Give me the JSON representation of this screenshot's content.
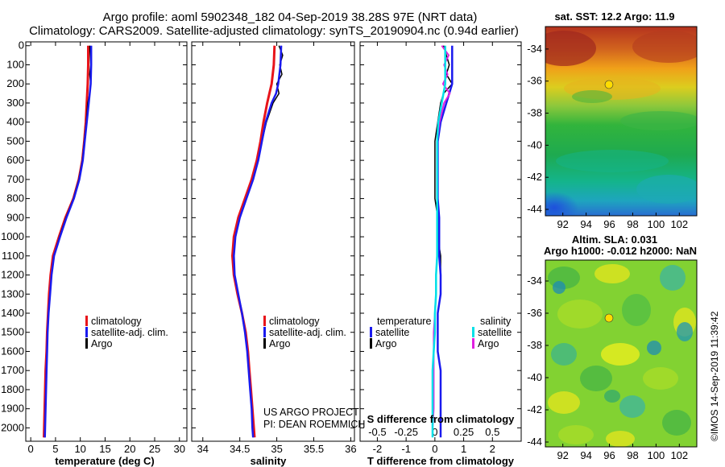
{
  "title_line1": "Argo profile: aoml 5902348_182 04-Sep-2019 38.28S 97E (NRT data)",
  "title_line2": "Climatology: CARS2009. Satellite-adjusted climatology: synTS_20190904.nc (0.94d earlier)",
  "colors": {
    "climatology": "#e8141a",
    "satellite": "#1a1aee",
    "argo": "#000000",
    "sat_salinity": "#00e0e8",
    "argo_salinity": "#e020e0"
  },
  "depth_ticks": [
    "0",
    "100",
    "200",
    "300",
    "400",
    "500",
    "600",
    "700",
    "800",
    "900",
    "1000",
    "1100",
    "1200",
    "1300",
    "1400",
    "1500",
    "1600",
    "1700",
    "1800",
    "1900",
    "2000"
  ],
  "temp_ticks": [
    "0",
    "5",
    "10",
    "15",
    "20",
    "25",
    "30"
  ],
  "sal_ticks": [
    "34",
    "34.5",
    "35",
    "35.5",
    "36"
  ],
  "tdiff_ticks": [
    "-2",
    "-1",
    "0",
    "1",
    "2"
  ],
  "sdiff_ticks": [
    "-0.5",
    "-0.25",
    "0",
    "0.25",
    "0.5"
  ],
  "xlabels": {
    "temp": "temperature (deg C)",
    "sal": "salinity",
    "tdiff": "T difference from climatology",
    "sdiff": "S difference from climatology"
  },
  "legend": {
    "climatology": "climatology",
    "satellite": "satellite-adj. clim.",
    "argo": "Argo"
  },
  "legend3": {
    "temperature": "temperature",
    "salinity": "salinity",
    "satellite": "satellite",
    "argo": "Argo"
  },
  "credit": {
    "line1": "US ARGO PROJECT",
    "line2": "PI: DEAN ROEMMICH"
  },
  "map1": {
    "title": "sat. SST: 12.2 Argo: 11.9"
  },
  "map2": {
    "title1": "Altim. SLA: 0.031",
    "title2": "Argo h1000: -0.012 h2000: NaN"
  },
  "map_lat_ticks": [
    "-34",
    "-36",
    "-38",
    "-40",
    "-42",
    "-44"
  ],
  "map_lon_ticks": [
    "92",
    "94",
    "96",
    "98",
    "100",
    "102"
  ],
  "stamp": "©IMOS 14-Sep-2019 11:39:42",
  "chart_data": [
    {
      "type": "line",
      "title": "temperature",
      "xlabel": "temperature (deg C)",
      "ylabel": "depth",
      "xlim": [
        -1,
        31.5
      ],
      "ylim": [
        2070,
        -20
      ],
      "series": [
        {
          "name": "climatology",
          "depth": [
            0,
            100,
            200,
            300,
            400,
            500,
            600,
            700,
            800,
            900,
            1000,
            1100,
            1200,
            1300,
            1400,
            1500,
            1600,
            1700,
            1800,
            1900,
            2000,
            2050
          ],
          "values": [
            11.6,
            11.6,
            11.5,
            11.3,
            11.1,
            10.8,
            10.4,
            9.7,
            8.6,
            7.0,
            5.7,
            4.5,
            4.0,
            3.7,
            3.5,
            3.3,
            3.2,
            3.0,
            2.9,
            2.8,
            2.7,
            2.65
          ]
        },
        {
          "name": "satellite-adj. clim.",
          "depth": [
            0,
            100,
            200,
            300,
            400,
            500,
            600,
            700,
            800,
            900,
            1000,
            1100,
            1200,
            1300,
            1400,
            1500,
            1600,
            1700,
            1800,
            1900,
            2000,
            2050
          ],
          "values": [
            12.2,
            12.2,
            12.1,
            11.7,
            11.3,
            10.9,
            10.5,
            9.8,
            8.7,
            7.2,
            5.9,
            4.7,
            4.2,
            3.9,
            3.6,
            3.4,
            3.3,
            3.2,
            3.1,
            3.0,
            2.9,
            2.85
          ]
        },
        {
          "name": "Argo",
          "depth": [
            0,
            50,
            100,
            150,
            200,
            250,
            300,
            400,
            500,
            600,
            700,
            800,
            900,
            1000,
            1100,
            1200,
            1300,
            1400,
            1500,
            1600,
            1700,
            1800,
            1900,
            2000
          ],
          "values": [
            11.9,
            12.0,
            12.1,
            11.9,
            12.1,
            11.9,
            11.5,
            11.2,
            10.8,
            10.4,
            9.7,
            8.6,
            7.1,
            5.8,
            4.7,
            4.2,
            3.9,
            3.6,
            3.4,
            3.3,
            3.2,
            3.1,
            3.0,
            2.9
          ]
        }
      ]
    },
    {
      "type": "line",
      "title": "salinity",
      "xlabel": "salinity",
      "ylabel": "depth",
      "xlim": [
        33.85,
        36.05
      ],
      "ylim": [
        2070,
        -20
      ],
      "series": [
        {
          "name": "climatology",
          "depth": [
            0,
            100,
            200,
            250,
            300,
            400,
            500,
            600,
            700,
            800,
            900,
            1000,
            1100,
            1200,
            1300,
            1400,
            1500,
            1600,
            1700,
            1800,
            1900,
            2000,
            2050
          ],
          "values": [
            34.97,
            34.96,
            34.93,
            34.9,
            34.87,
            34.82,
            34.78,
            34.73,
            34.66,
            34.57,
            34.48,
            34.42,
            34.4,
            34.42,
            34.47,
            34.53,
            34.58,
            34.61,
            34.63,
            34.65,
            34.67,
            34.69,
            34.7
          ]
        },
        {
          "name": "satellite-adj. clim.",
          "depth": [
            0,
            100,
            200,
            250,
            300,
            400,
            500,
            600,
            700,
            800,
            900,
            1000,
            1100,
            1200,
            1300,
            1400,
            1500,
            1600,
            1700,
            1800,
            1900,
            2000,
            2050
          ],
          "values": [
            35.06,
            35.05,
            35.02,
            34.99,
            34.93,
            34.85,
            34.8,
            34.75,
            34.68,
            34.59,
            34.5,
            34.44,
            34.42,
            34.43,
            34.48,
            34.53,
            34.57,
            34.6,
            34.62,
            34.64,
            34.66,
            34.67,
            34.68
          ]
        },
        {
          "name": "Argo",
          "depth": [
            0,
            50,
            100,
            150,
            200,
            250,
            300,
            400,
            500,
            600,
            700,
            800,
            900,
            1000,
            1100,
            1200,
            1300,
            1400,
            1500,
            1600,
            1700,
            1800,
            1900,
            2000
          ],
          "values": [
            35.03,
            35.08,
            35.04,
            35.07,
            35.0,
            35.03,
            34.95,
            34.86,
            34.8,
            34.75,
            34.68,
            34.59,
            34.5,
            34.44,
            34.42,
            34.43,
            34.48,
            34.53,
            34.57,
            34.6,
            34.62,
            34.64,
            34.66,
            34.67
          ]
        }
      ]
    },
    {
      "type": "line",
      "title": "T and S difference from climatology",
      "xlabel": "T difference from climatology",
      "x2label": "S difference from climatology",
      "ylabel": "depth",
      "xlim": [
        -2.6,
        3.0
      ],
      "x2lim": [
        -0.65,
        0.75
      ],
      "ylim": [
        2070,
        -20
      ],
      "series": [
        {
          "name": "temperature satellite",
          "axis": "T",
          "depth": [
            0,
            100,
            200,
            300,
            400,
            500,
            600,
            700,
            800,
            900,
            1000,
            1100,
            1200,
            1300,
            1400,
            1500,
            1600,
            1700,
            1800,
            1900,
            2000,
            2050
          ],
          "values": [
            0.6,
            0.6,
            0.6,
            0.4,
            0.2,
            0.1,
            0.1,
            0.1,
            0.1,
            0.15,
            0.15,
            0.15,
            0.2,
            0.2,
            0.1,
            0.1,
            0.1,
            0.2,
            0.2,
            0.2,
            0.2,
            0.2
          ]
        },
        {
          "name": "temperature Argo",
          "axis": "T",
          "depth": [
            0,
            50,
            100,
            150,
            200,
            250,
            300,
            400,
            500,
            600,
            700,
            800,
            900,
            1000,
            1100,
            1200,
            1300,
            1400,
            1500,
            1600,
            1700,
            1800,
            1900,
            2000
          ],
          "values": [
            0.3,
            0.4,
            0.5,
            0.4,
            0.6,
            0.3,
            0.2,
            0.1,
            0.0,
            0.0,
            0.0,
            0.0,
            0.1,
            0.1,
            0.2,
            0.2,
            0.2,
            0.1,
            0.1,
            0.1,
            0.2,
            0.2,
            0.2,
            0.2
          ]
        },
        {
          "name": "salinity satellite",
          "axis": "S",
          "depth": [
            0,
            100,
            200,
            300,
            400,
            500,
            600,
            700,
            800,
            900,
            1000,
            1100,
            1200,
            1300,
            1400,
            1500,
            1600,
            1700,
            1800,
            1900,
            2000,
            2050
          ],
          "values": [
            0.09,
            0.09,
            0.09,
            0.06,
            0.03,
            0.02,
            0.02,
            0.02,
            0.02,
            0.02,
            0.02,
            0.02,
            0.01,
            0.01,
            0.0,
            0.0,
            -0.01,
            -0.02,
            -0.02,
            -0.02,
            -0.02,
            -0.02
          ]
        },
        {
          "name": "salinity Argo",
          "axis": "S",
          "depth": [
            0,
            50,
            100,
            150,
            200,
            250,
            300,
            400,
            500,
            600,
            700,
            800,
            900,
            1000,
            1100,
            1200,
            1300,
            1400,
            1500,
            1600,
            1700,
            1800,
            1900,
            2000
          ],
          "values": [
            0.06,
            0.12,
            0.08,
            0.11,
            0.07,
            0.13,
            0.08,
            0.04,
            0.02,
            0.02,
            0.02,
            0.02,
            0.02,
            0.02,
            0.02,
            0.01,
            0.01,
            0.0,
            -0.01,
            -0.01,
            -0.01,
            -0.01,
            -0.01,
            -0.02
          ]
        }
      ]
    }
  ]
}
